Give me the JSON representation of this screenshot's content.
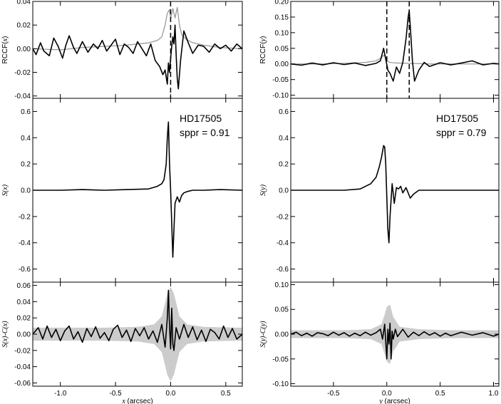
{
  "chart_data": [
    {
      "id": "left-top",
      "type": "line",
      "xlim": [
        -1.25,
        0.65
      ],
      "ylim": [
        -0.042,
        0.04
      ],
      "yticks": [
        -0.04,
        -0.02,
        0.0,
        0.02,
        0.04
      ],
      "ytick_labels": [
        "-0.04",
        "-0.02",
        "0.00",
        "0.02",
        "0.04"
      ],
      "xticks": [
        -1.0,
        -0.5,
        0.0,
        0.5
      ],
      "xtick_labels": [
        "",
        "",
        "",
        ""
      ],
      "ylabel": "RCCF(x)",
      "ylabel_parts": [
        {
          "text": "RCCF(",
          "style": "normal"
        },
        {
          "text": "x",
          "style": "italic"
        },
        {
          "text": ")",
          "style": "normal"
        }
      ],
      "xlabel": "",
      "vlines": [
        0.0
      ],
      "series": [
        {
          "color": "#999999",
          "x": [
            -1.25,
            -1.0,
            -0.8,
            -0.6,
            -0.4,
            -0.3,
            -0.2,
            -0.12,
            -0.08,
            -0.05,
            -0.03,
            -0.01,
            0.0,
            0.02,
            0.04,
            0.06,
            0.08,
            0.1,
            0.14,
            0.2,
            0.3,
            0.45,
            0.65
          ],
          "y": [
            0.0,
            -0.001,
            0.001,
            0.002,
            0.003,
            0.004,
            0.005,
            0.007,
            0.01,
            0.02,
            0.03,
            0.033,
            0.025,
            0.034,
            0.026,
            0.035,
            0.02,
            0.012,
            0.008,
            0.005,
            0.003,
            0.001,
            0.0
          ]
        },
        {
          "color": "#000000",
          "x": [
            -1.25,
            -1.22,
            -1.18,
            -1.15,
            -1.1,
            -1.06,
            -1.02,
            -0.98,
            -0.95,
            -0.92,
            -0.88,
            -0.85,
            -0.8,
            -0.75,
            -0.7,
            -0.66,
            -0.62,
            -0.58,
            -0.54,
            -0.5,
            -0.46,
            -0.42,
            -0.38,
            -0.34,
            -0.3,
            -0.26,
            -0.22,
            -0.18,
            -0.14,
            -0.1,
            -0.07,
            -0.05,
            -0.03,
            -0.02,
            -0.01,
            0.0,
            0.01,
            0.02,
            0.03,
            0.04,
            0.05,
            0.06,
            0.07,
            0.09,
            0.12,
            0.16,
            0.2,
            0.25,
            0.3,
            0.35,
            0.4,
            0.45,
            0.5,
            0.55,
            0.6,
            0.65
          ],
          "y": [
            0.0,
            -0.005,
            0.005,
            -0.002,
            -0.006,
            0.009,
            0.002,
            -0.008,
            0.003,
            0.011,
            0.001,
            -0.004,
            0.006,
            -0.003,
            0.004,
            0.0,
            0.007,
            -0.002,
            0.003,
            0.008,
            -0.005,
            0.004,
            0.001,
            -0.004,
            0.006,
            0.0,
            -0.006,
            0.004,
            -0.01,
            -0.015,
            -0.022,
            -0.018,
            -0.03,
            -0.012,
            -0.02,
            -0.008,
            0.002,
            0.01,
            0.004,
            0.02,
            -0.005,
            -0.025,
            -0.034,
            -0.01,
            0.015,
            0.005,
            -0.004,
            0.003,
            0.002,
            -0.003,
            0.004,
            0.0,
            0.003,
            -0.002,
            0.004,
            0.0
          ]
        }
      ]
    },
    {
      "id": "left-middle",
      "type": "line",
      "xlim": [
        -1.25,
        0.65
      ],
      "ylim": [
        -0.7,
        0.7
      ],
      "yticks": [
        -0.6,
        -0.4,
        -0.2,
        0.0,
        0.2,
        0.4,
        0.6
      ],
      "ytick_labels": [
        "-0.6",
        "-0.4",
        "-0.2",
        "0.0",
        "0.2",
        "0.4",
        "0.6"
      ],
      "xticks": [
        -1.0,
        -0.5,
        0.0,
        0.5
      ],
      "xtick_labels": [
        "",
        "",
        "",
        ""
      ],
      "ylabel": "S(x)",
      "ylabel_parts": [
        {
          "text": "S(x)",
          "style": "italic"
        }
      ],
      "xlabel": "",
      "annotations": [
        "HD17505",
        "sppr = 0.91"
      ],
      "series": [
        {
          "color": "#000000",
          "x": [
            -1.25,
            -1.0,
            -0.8,
            -0.6,
            -0.4,
            -0.2,
            -0.12,
            -0.08,
            -0.06,
            -0.04,
            -0.03,
            -0.02,
            -0.01,
            0.0,
            0.01,
            0.02,
            0.03,
            0.04,
            0.06,
            0.08,
            0.1,
            0.12,
            0.15,
            0.2,
            0.3,
            0.45,
            0.65
          ],
          "y": [
            0.0,
            0.0,
            0.005,
            0.0,
            0.005,
            0.01,
            0.03,
            0.05,
            0.08,
            0.2,
            0.4,
            0.52,
            0.2,
            0.0,
            -0.25,
            -0.51,
            -0.3,
            -0.1,
            -0.05,
            -0.09,
            -0.04,
            -0.02,
            -0.01,
            0.0,
            0.0,
            0.005,
            0.0
          ]
        }
      ]
    },
    {
      "id": "left-bottom",
      "type": "line",
      "xlim": [
        -1.25,
        0.65
      ],
      "ylim": [
        -0.064,
        0.064
      ],
      "yticks": [
        -0.06,
        -0.04,
        -0.02,
        0.0,
        0.02,
        0.04,
        0.06
      ],
      "ytick_labels": [
        "-0.06",
        "-0.04",
        "-0.02",
        "0.00",
        "0.02",
        "0.04",
        "0.06"
      ],
      "xticks": [
        -1.0,
        -0.5,
        0.0,
        0.5
      ],
      "xtick_labels": [
        "-1.0",
        "-0.5",
        "0.0",
        "0.5"
      ],
      "ylabel": "S(x)-C(x)",
      "ylabel_parts": [
        {
          "text": "S(x)-C(x)",
          "style": "italic"
        }
      ],
      "xlabel": "x (arcsec)",
      "xlabel_parts": [
        {
          "text": "x",
          "style": "italic"
        },
        {
          "text": " (arcsec)",
          "style": "normal"
        }
      ],
      "band": {
        "color": "#cccccc",
        "x": [
          -1.25,
          -0.6,
          -0.3,
          -0.15,
          -0.08,
          -0.03,
          0.0,
          0.03,
          0.08,
          0.15,
          0.3,
          0.6,
          0.65
        ],
        "half_width": [
          0.008,
          0.008,
          0.009,
          0.012,
          0.022,
          0.05,
          0.058,
          0.05,
          0.022,
          0.012,
          0.009,
          0.008,
          0.008
        ]
      },
      "series": [
        {
          "color": "#000000",
          "x": [
            -1.25,
            -1.2,
            -1.16,
            -1.12,
            -1.08,
            -1.04,
            -1.0,
            -0.96,
            -0.92,
            -0.88,
            -0.84,
            -0.8,
            -0.76,
            -0.72,
            -0.68,
            -0.64,
            -0.6,
            -0.56,
            -0.52,
            -0.48,
            -0.44,
            -0.4,
            -0.36,
            -0.32,
            -0.28,
            -0.24,
            -0.2,
            -0.16,
            -0.12,
            -0.08,
            -0.05,
            -0.03,
            -0.02,
            -0.01,
            0.0,
            0.01,
            0.02,
            0.03,
            0.05,
            0.08,
            0.12,
            0.16,
            0.2,
            0.24,
            0.28,
            0.32,
            0.36,
            0.4,
            0.44,
            0.48,
            0.52,
            0.56,
            0.6,
            0.65
          ],
          "y": [
            0.0,
            0.008,
            -0.006,
            0.01,
            -0.004,
            0.006,
            -0.008,
            0.004,
            0.01,
            -0.006,
            0.003,
            -0.01,
            0.007,
            -0.003,
            0.009,
            -0.005,
            0.002,
            -0.008,
            0.006,
            0.011,
            -0.004,
            0.005,
            -0.009,
            0.007,
            -0.002,
            0.008,
            -0.006,
            0.004,
            -0.01,
            0.012,
            -0.016,
            0.02,
            0.054,
            0.01,
            -0.018,
            0.032,
            -0.012,
            -0.02,
            0.008,
            -0.006,
            0.012,
            -0.004,
            0.009,
            -0.007,
            0.005,
            -0.009,
            0.006,
            0.002,
            -0.006,
            0.01,
            -0.004,
            0.007,
            -0.006,
            0.0
          ]
        }
      ]
    },
    {
      "id": "right-top",
      "type": "line",
      "xlim": [
        -0.9,
        1.05
      ],
      "ylim": [
        -0.11,
        0.2
      ],
      "yticks": [
        -0.1,
        -0.05,
        0.0,
        0.05,
        0.1,
        0.15,
        0.2
      ],
      "ytick_labels": [
        "-0.10",
        "-0.05",
        "0.00",
        "0.05",
        "0.10",
        "0.15",
        "0.20"
      ],
      "xticks": [
        -0.5,
        0.0,
        0.5,
        1.0
      ],
      "xtick_labels": [
        "",
        "",
        "",
        ""
      ],
      "ylabel": "RCCF(y)",
      "ylabel_parts": [
        {
          "text": "RCCF(",
          "style": "normal"
        },
        {
          "text": "y",
          "style": "italic"
        },
        {
          "text": ")",
          "style": "normal"
        }
      ],
      "xlabel": "",
      "vlines": [
        0.0,
        0.21
      ],
      "series": [
        {
          "color": "#999999",
          "x": [
            -0.9,
            -0.6,
            -0.4,
            -0.2,
            -0.1,
            -0.05,
            -0.03,
            -0.01,
            0.0,
            0.02,
            0.05,
            0.1,
            0.2,
            0.4,
            0.6,
            0.8,
            1.05
          ],
          "y": [
            0.0,
            0.0,
            0.002,
            0.005,
            0.01,
            0.02,
            0.028,
            0.022,
            0.01,
            0.006,
            0.004,
            0.003,
            0.002,
            0.0,
            0.0,
            0.0,
            0.0
          ]
        },
        {
          "color": "#000000",
          "x": [
            -0.9,
            -0.8,
            -0.7,
            -0.6,
            -0.5,
            -0.4,
            -0.3,
            -0.2,
            -0.1,
            -0.06,
            -0.03,
            -0.01,
            0.01,
            0.03,
            0.06,
            0.09,
            0.12,
            0.15,
            0.18,
            0.2,
            0.21,
            0.22,
            0.24,
            0.26,
            0.3,
            0.35,
            0.4,
            0.5,
            0.6,
            0.7,
            0.8,
            0.9,
            1.0,
            1.05
          ],
          "y": [
            0.0,
            -0.004,
            0.003,
            -0.003,
            0.004,
            -0.002,
            0.003,
            -0.005,
            0.002,
            0.01,
            0.05,
            0.015,
            -0.02,
            -0.03,
            -0.055,
            -0.01,
            -0.03,
            0.005,
            0.08,
            0.15,
            0.17,
            0.12,
            0.01,
            -0.055,
            -0.02,
            0.005,
            -0.008,
            0.004,
            -0.003,
            0.003,
            0.01,
            -0.003,
            0.002,
            0.0
          ]
        }
      ]
    },
    {
      "id": "right-middle",
      "type": "line",
      "xlim": [
        -0.9,
        1.05
      ],
      "ylim": [
        -0.7,
        0.7
      ],
      "yticks": [
        -0.6,
        -0.4,
        -0.2,
        0.0,
        0.2,
        0.4,
        0.6
      ],
      "ytick_labels": [
        "-0.6",
        "-0.4",
        "-0.2",
        "0.0",
        "0.2",
        "0.4",
        "0.6"
      ],
      "xticks": [
        -0.5,
        0.0,
        0.5,
        1.0
      ],
      "xtick_labels": [
        "",
        "",
        "",
        ""
      ],
      "ylabel": "S(y)",
      "ylabel_parts": [
        {
          "text": "S(y)",
          "style": "italic"
        }
      ],
      "xlabel": "",
      "annotations": [
        "HD17505",
        "sppr = 0.79"
      ],
      "series": [
        {
          "color": "#000000",
          "x": [
            -0.9,
            -0.6,
            -0.4,
            -0.25,
            -0.15,
            -0.1,
            -0.07,
            -0.05,
            -0.03,
            -0.02,
            -0.01,
            0.0,
            0.01,
            0.02,
            0.03,
            0.05,
            0.07,
            0.09,
            0.11,
            0.13,
            0.15,
            0.18,
            0.2,
            0.22,
            0.25,
            0.3,
            0.5,
            0.7,
            1.05
          ],
          "y": [
            0.0,
            0.0,
            0.0,
            0.01,
            0.05,
            0.1,
            0.18,
            0.25,
            0.34,
            0.33,
            0.2,
            -0.05,
            -0.3,
            -0.4,
            -0.2,
            0.05,
            -0.1,
            0.02,
            0.01,
            0.03,
            -0.02,
            0.02,
            -0.02,
            -0.06,
            -0.03,
            0.0,
            0.0,
            0.0,
            0.0
          ]
        }
      ]
    },
    {
      "id": "right-bottom",
      "type": "line",
      "xlim": [
        -0.9,
        1.05
      ],
      "ylim": [
        -0.105,
        0.105
      ],
      "yticks": [
        -0.1,
        -0.05,
        0.0,
        0.05,
        0.1
      ],
      "ytick_labels": [
        "-0.10",
        "-0.05",
        "0.00",
        "0.05",
        "0.10"
      ],
      "xticks": [
        -0.5,
        0.0,
        0.5,
        1.0
      ],
      "xtick_labels": [
        "-0.5",
        "0.0",
        "0.5",
        "1.0"
      ],
      "ylabel": "S(y)-C(y)",
      "ylabel_parts": [
        {
          "text": "S(y)-C(y)",
          "style": "italic"
        }
      ],
      "xlabel": "y (arcsec)",
      "xlabel_parts": [
        {
          "text": "y",
          "style": "italic"
        },
        {
          "text": " (arcsec)",
          "style": "normal"
        }
      ],
      "band": {
        "color": "#cccccc",
        "x": [
          -0.9,
          -0.4,
          -0.15,
          -0.05,
          -0.02,
          0.0,
          0.03,
          0.06,
          0.12,
          0.3,
          0.6,
          1.05
        ],
        "half_width": [
          0.008,
          0.008,
          0.01,
          0.02,
          0.04,
          0.055,
          0.06,
          0.035,
          0.015,
          0.01,
          0.008,
          0.008
        ]
      },
      "series": [
        {
          "color": "#000000",
          "x": [
            -0.9,
            -0.85,
            -0.8,
            -0.75,
            -0.7,
            -0.65,
            -0.6,
            -0.55,
            -0.5,
            -0.45,
            -0.4,
            -0.35,
            -0.3,
            -0.25,
            -0.2,
            -0.15,
            -0.1,
            -0.06,
            -0.04,
            -0.02,
            0.0,
            0.01,
            0.02,
            0.03,
            0.04,
            0.05,
            0.06,
            0.08,
            0.1,
            0.15,
            0.2,
            0.25,
            0.3,
            0.35,
            0.4,
            0.45,
            0.5,
            0.55,
            0.6,
            0.7,
            0.8,
            0.9,
            1.0,
            1.05
          ],
          "y": [
            0.0,
            0.004,
            -0.003,
            0.002,
            -0.004,
            0.003,
            0.001,
            -0.003,
            0.004,
            -0.002,
            0.003,
            -0.004,
            0.002,
            -0.003,
            0.004,
            -0.002,
            0.003,
            0.01,
            -0.01,
            0.02,
            -0.05,
            0.01,
            -0.02,
            0.022,
            -0.05,
            0.006,
            -0.01,
            0.01,
            -0.005,
            0.01,
            -0.006,
            0.004,
            -0.003,
            0.005,
            -0.002,
            0.003,
            -0.004,
            0.002,
            -0.003,
            0.004,
            -0.002,
            0.003,
            -0.004,
            0.0
          ]
        }
      ]
    }
  ]
}
